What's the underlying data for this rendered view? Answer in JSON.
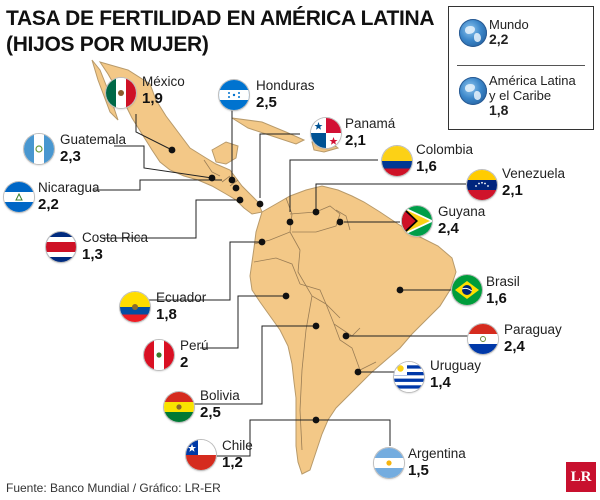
{
  "title": {
    "line1": "TASA DE FERTILIDAD EN AMÉRICA LATINA",
    "line2": "(HIJOS POR MUJER)"
  },
  "legend": {
    "world": {
      "name": "Mundo",
      "value": "2,2",
      "icon": "globe-icon"
    },
    "region": {
      "name_line1": "América Latina",
      "name_line2": "y el Caribe",
      "value": "1,8",
      "icon": "globe-icon"
    }
  },
  "countries": {
    "mexico": {
      "name": "México",
      "value": "1,9",
      "flag": "mexico-flag"
    },
    "honduras": {
      "name": "Honduras",
      "value": "2,5",
      "flag": "honduras-flag"
    },
    "guatemala": {
      "name": "Guatemala",
      "value": "2,3",
      "flag": "guatemala-flag"
    },
    "nicaragua": {
      "name": "Nicaragua",
      "value": "2,2",
      "flag": "nicaragua-flag"
    },
    "costa_rica": {
      "name": "Costa Rica",
      "value": "1,3",
      "flag": "costa-rica-flag"
    },
    "panama": {
      "name": "Panamá",
      "value": "2,1",
      "flag": "panama-flag"
    },
    "colombia": {
      "name": "Colombia",
      "value": "1,6",
      "flag": "colombia-flag"
    },
    "venezuela": {
      "name": "Venezuela",
      "value": "2,1",
      "flag": "venezuela-flag"
    },
    "guyana": {
      "name": "Guyana",
      "value": "2,4",
      "flag": "guyana-flag"
    },
    "ecuador": {
      "name": "Ecuador",
      "value": "1,8",
      "flag": "ecuador-flag"
    },
    "brasil": {
      "name": "Brasil",
      "value": "1,6",
      "flag": "brazil-flag"
    },
    "peru": {
      "name": "Perú",
      "value": "2",
      "flag": "peru-flag"
    },
    "paraguay": {
      "name": "Paraguay",
      "value": "2,4",
      "flag": "paraguay-flag"
    },
    "bolivia": {
      "name": "Bolivia",
      "value": "2,5",
      "flag": "bolivia-flag"
    },
    "uruguay": {
      "name": "Uruguay",
      "value": "1,4",
      "flag": "uruguay-flag"
    },
    "chile": {
      "name": "Chile",
      "value": "1,2",
      "flag": "chile-flag"
    },
    "argentina": {
      "name": "Argentina",
      "value": "1,5",
      "flag": "argentina-flag"
    }
  },
  "footer": {
    "source": "Fuente: Banco Mundial / Gráfico: LR-ER"
  },
  "logo": {
    "text": "LR",
    "color": "#c8102e"
  },
  "colors": {
    "land": "#f3c887",
    "border": "#9a7d55",
    "leader": "#222222"
  }
}
